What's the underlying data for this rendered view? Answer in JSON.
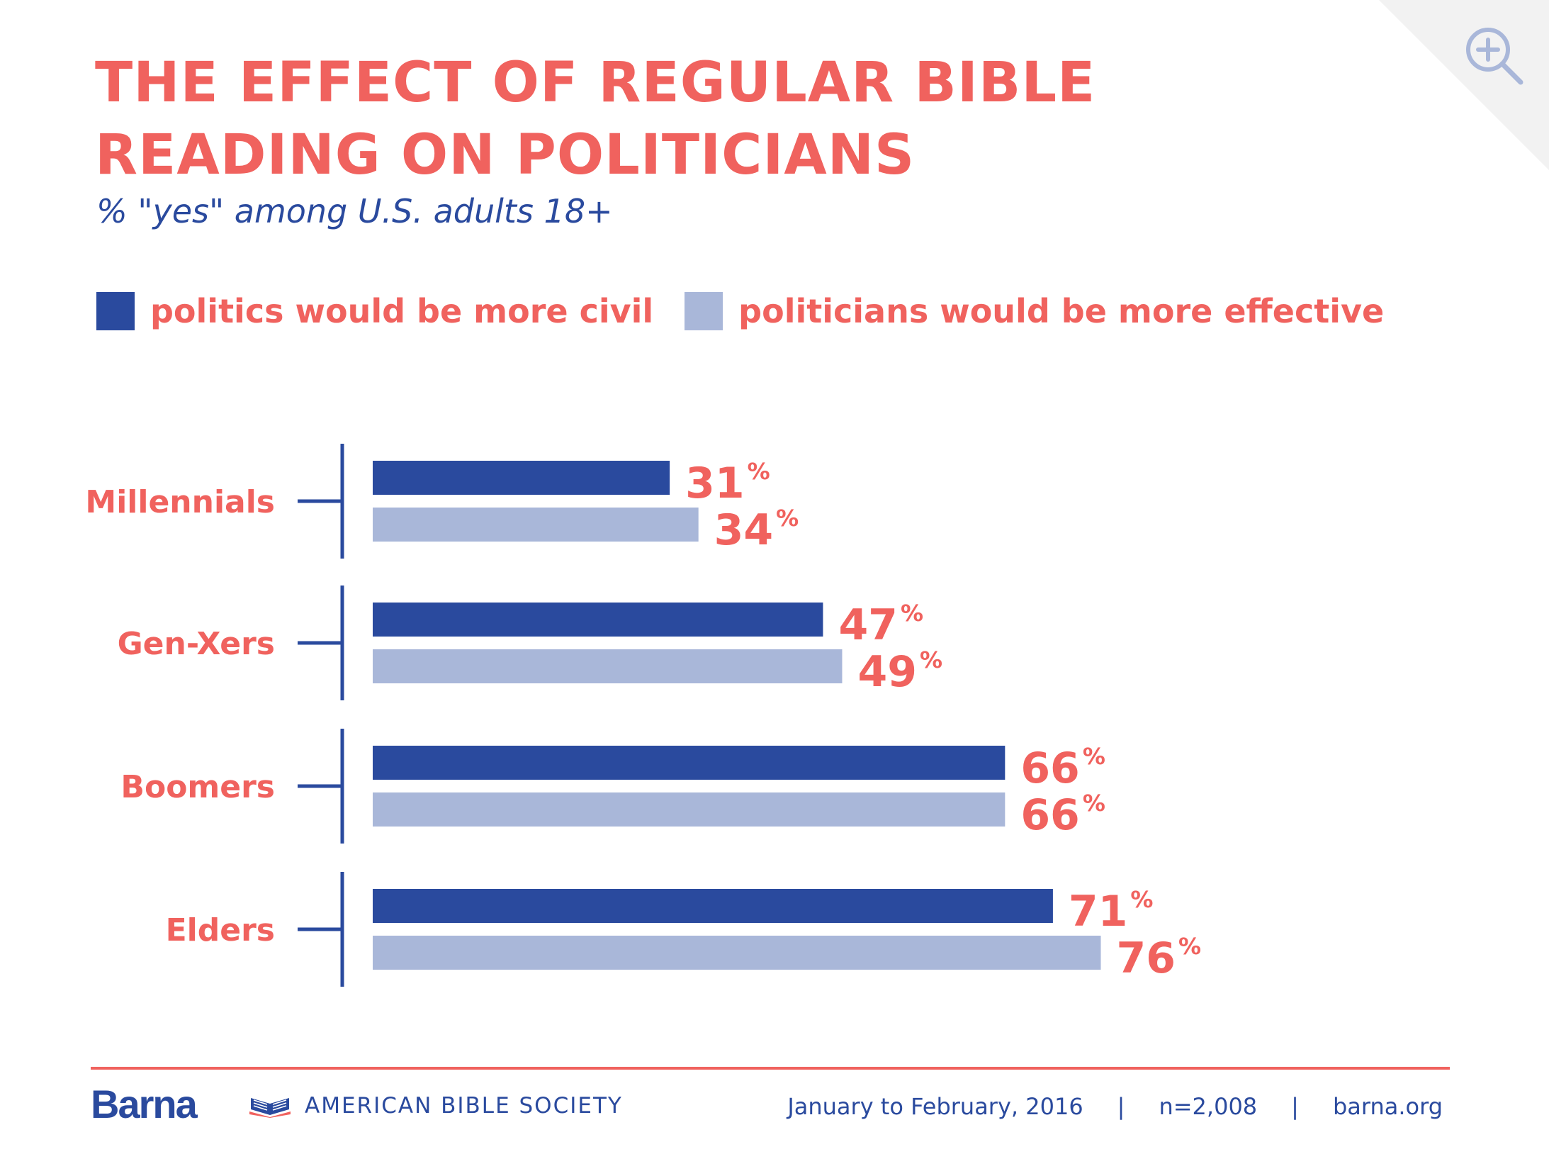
{
  "colors": {
    "accent": "#f0625e",
    "dark_blue": "#2a4a9e",
    "light_blue": "#a9b7d9",
    "corner": "#f2f2f2"
  },
  "header": {
    "title": "THE EFFECT OF REGULAR BIBLE READING ON POLITICIANS",
    "subtitle": "% \"yes\" among U.S. adults 18+"
  },
  "zoom_icon": "zoom-in-icon",
  "chart_data": {
    "type": "bar",
    "orientation": "horizontal",
    "title": "THE EFFECT OF REGULAR BIBLE READING ON POLITICIANS",
    "subtitle": "% \"yes\" among U.S. adults 18+",
    "categories": [
      "Millennials",
      "Gen-Xers",
      "Boomers",
      "Elders"
    ],
    "series": [
      {
        "name": "politics would be more civil",
        "color": "#2a4a9e",
        "values": [
          31,
          47,
          66,
          71
        ]
      },
      {
        "name": "politicians would be more effective",
        "color": "#a9b7d9",
        "values": [
          34,
          49,
          66,
          76
        ]
      }
    ],
    "value_suffix": "%",
    "xlim": [
      0,
      100
    ],
    "xlabel": "",
    "ylabel": "",
    "grid": false,
    "legend_position": "top-left"
  },
  "footer": {
    "brand": "Barna",
    "partner": "AMERICAN BIBLE SOCIETY",
    "partner_icon": "bible-society-logo-icon",
    "date": "January to February, 2016",
    "separator": "|",
    "sample": "n=2,008",
    "site": "barna.org"
  }
}
